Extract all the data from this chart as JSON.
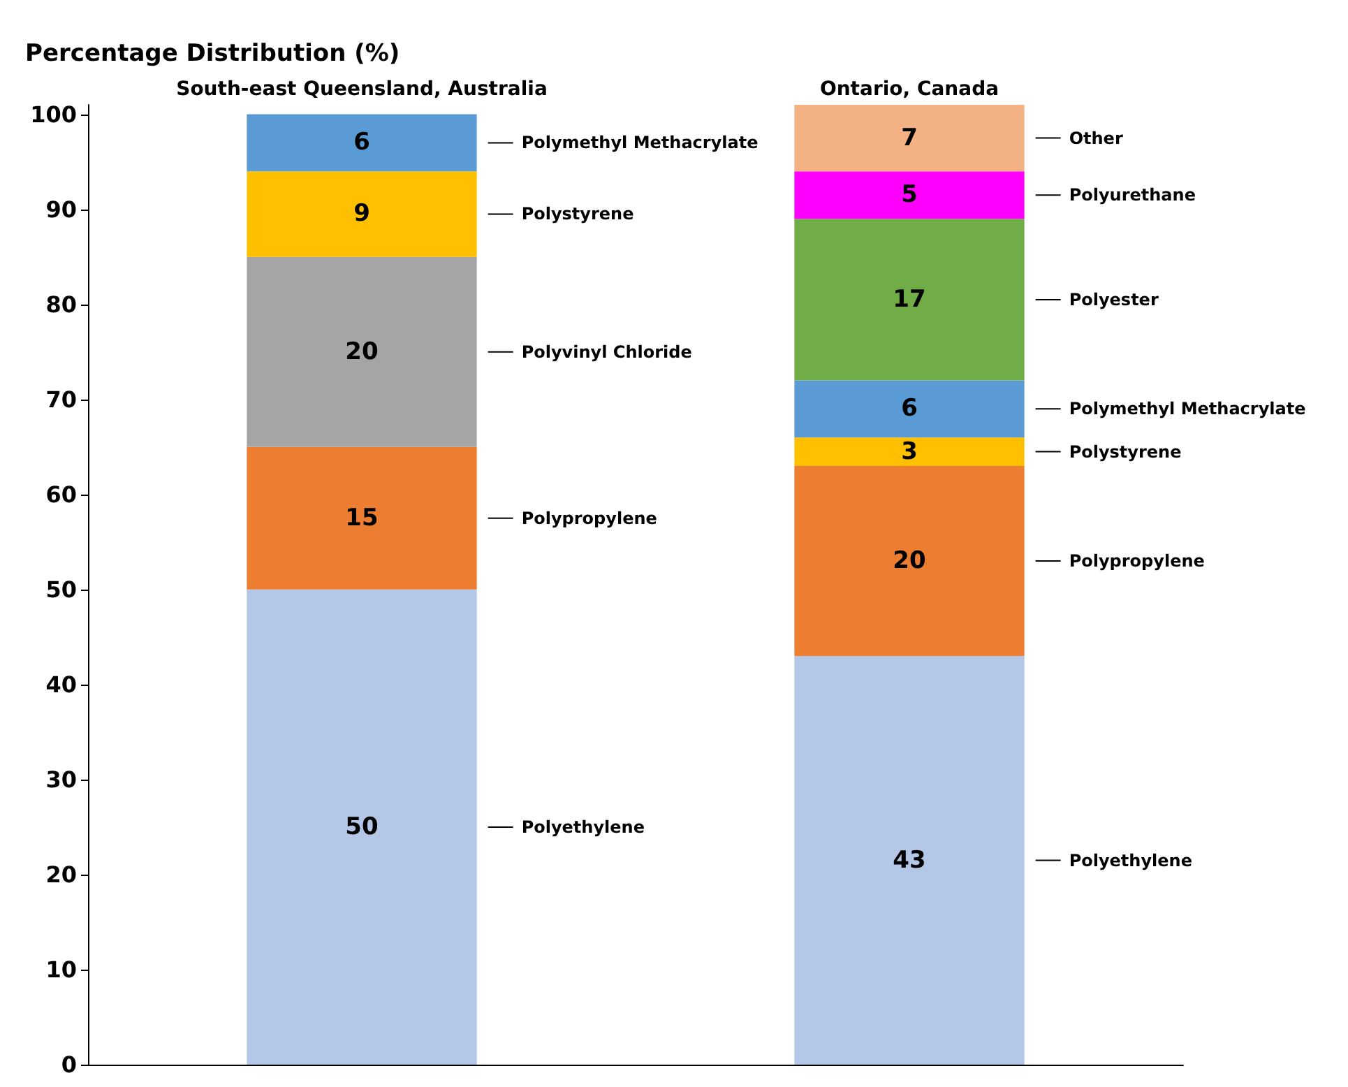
{
  "chart_data": {
    "type": "bar",
    "stacked": true,
    "ylabel": "Percentage Distribution (%)",
    "categories": [
      "South-east Queensland, Australia",
      "Ontario, Canada"
    ],
    "series": [
      {
        "name": "Polyethylene",
        "color": "#b4c7e7",
        "values": [
          50,
          43
        ]
      },
      {
        "name": "Polypropylene",
        "color": "#ed7d31",
        "values": [
          15,
          20
        ]
      },
      {
        "name": "Polyvinyl Chloride",
        "color": "#a5a5a5",
        "values": [
          20,
          null
        ]
      },
      {
        "name": "Polystyrene",
        "color": "#ffc000",
        "values": [
          9,
          3
        ]
      },
      {
        "name": "Polymethyl Methacrylate",
        "color": "#5b9bd5",
        "values": [
          6,
          6
        ]
      },
      {
        "name": "Polyester",
        "color": "#70ad47",
        "values": [
          null,
          17
        ]
      },
      {
        "name": "Polyurethane",
        "color": "#ff00ff",
        "values": [
          null,
          5
        ]
      },
      {
        "name": "Other",
        "color": "#f4b183",
        "values": [
          null,
          7
        ]
      }
    ],
    "ylim": [
      0,
      101
    ],
    "yticks": [
      0,
      10,
      20,
      30,
      40,
      50,
      60,
      70,
      80,
      90,
      100
    ],
    "data_labels": true,
    "grid": false,
    "legend": false
  }
}
